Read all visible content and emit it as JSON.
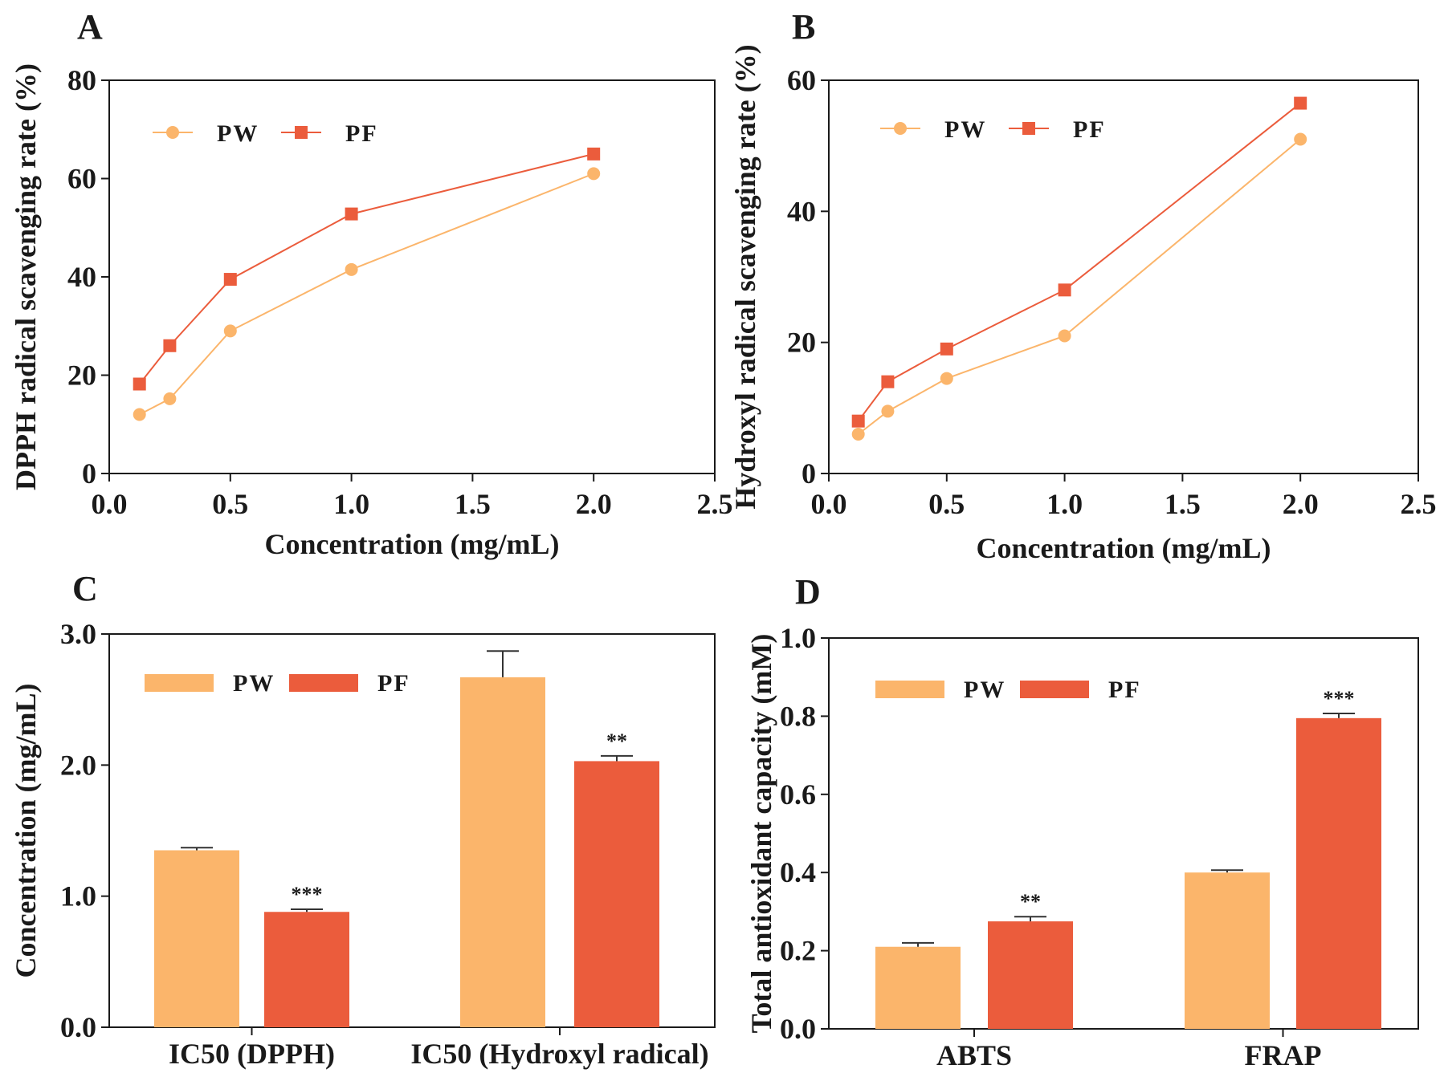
{
  "colors": {
    "PW": "#fbb56b",
    "PF": "#eb5c3c",
    "axis": "#1a1a1a",
    "errorbar": "#333333"
  },
  "chart_data": [
    {
      "panel": "A",
      "type": "line",
      "xlabel": "Concentration (mg/mL)",
      "ylabel": "DPPH radical scavenging rate (%)",
      "xlim": [
        0,
        2.5
      ],
      "ylim": [
        0,
        80
      ],
      "xticks": [
        "0.0",
        "0.5",
        "1.0",
        "1.5",
        "2.0",
        "2.5"
      ],
      "yticks": [
        "0",
        "20",
        "40",
        "60",
        "80"
      ],
      "x": [
        0.125,
        0.25,
        0.5,
        1.0,
        2.0
      ],
      "legend": "top-left",
      "series": [
        {
          "name": "PW",
          "marker": "circle",
          "values": [
            12,
            15.2,
            29,
            41.5,
            61
          ]
        },
        {
          "name": "PF",
          "marker": "square",
          "values": [
            18.2,
            26,
            39.5,
            52.8,
            65
          ]
        }
      ]
    },
    {
      "panel": "B",
      "type": "line",
      "xlabel": "Concentration (mg/mL)",
      "ylabel": "Hydroxyl radical scavenging rate (%)",
      "xlim": [
        0,
        2.5
      ],
      "ylim": [
        0,
        60
      ],
      "xticks": [
        "0.0",
        "0.5",
        "1.0",
        "1.5",
        "2.0",
        "2.5"
      ],
      "yticks": [
        "0",
        "20",
        "40",
        "60"
      ],
      "x": [
        0.125,
        0.25,
        0.5,
        1.0,
        2.0
      ],
      "legend": "top-left",
      "series": [
        {
          "name": "PW",
          "marker": "circle",
          "values": [
            6,
            9.5,
            14.5,
            21,
            51
          ]
        },
        {
          "name": "PF",
          "marker": "square",
          "values": [
            8,
            14,
            19,
            28,
            56.5
          ]
        }
      ]
    },
    {
      "panel": "C",
      "type": "bar",
      "xlabel": "",
      "ylabel": "Concentration (mg/mL)",
      "ylim": [
        0,
        3.0
      ],
      "yticks": [
        "0.0",
        "1.0",
        "2.0",
        "3.0"
      ],
      "categories": [
        "IC50 (DPPH)",
        "IC50 (Hydroxyl radical)"
      ],
      "legend": "top-left",
      "series": [
        {
          "name": "PW",
          "values": [
            1.35,
            2.67
          ],
          "errors": [
            0.02,
            0.2
          ],
          "significance": [
            "",
            ""
          ]
        },
        {
          "name": "PF",
          "values": [
            0.88,
            2.03
          ],
          "errors": [
            0.02,
            0.04
          ],
          "significance": [
            "***",
            "**"
          ]
        }
      ]
    },
    {
      "panel": "D",
      "type": "bar",
      "xlabel": "",
      "ylabel": "Total antioxidant capacity (mM)",
      "ylim": [
        0,
        1.0
      ],
      "yticks": [
        "0.0",
        "0.2",
        "0.4",
        "0.6",
        "0.8",
        "1.0"
      ],
      "categories": [
        "ABTS",
        "FRAP"
      ],
      "legend": "top-left",
      "series": [
        {
          "name": "PW",
          "values": [
            0.21,
            0.4
          ],
          "errors": [
            0.01,
            0.006
          ],
          "significance": [
            "",
            ""
          ]
        },
        {
          "name": "PF",
          "values": [
            0.275,
            0.795
          ],
          "errors": [
            0.012,
            0.012
          ],
          "significance": [
            "**",
            "***"
          ]
        }
      ]
    }
  ]
}
